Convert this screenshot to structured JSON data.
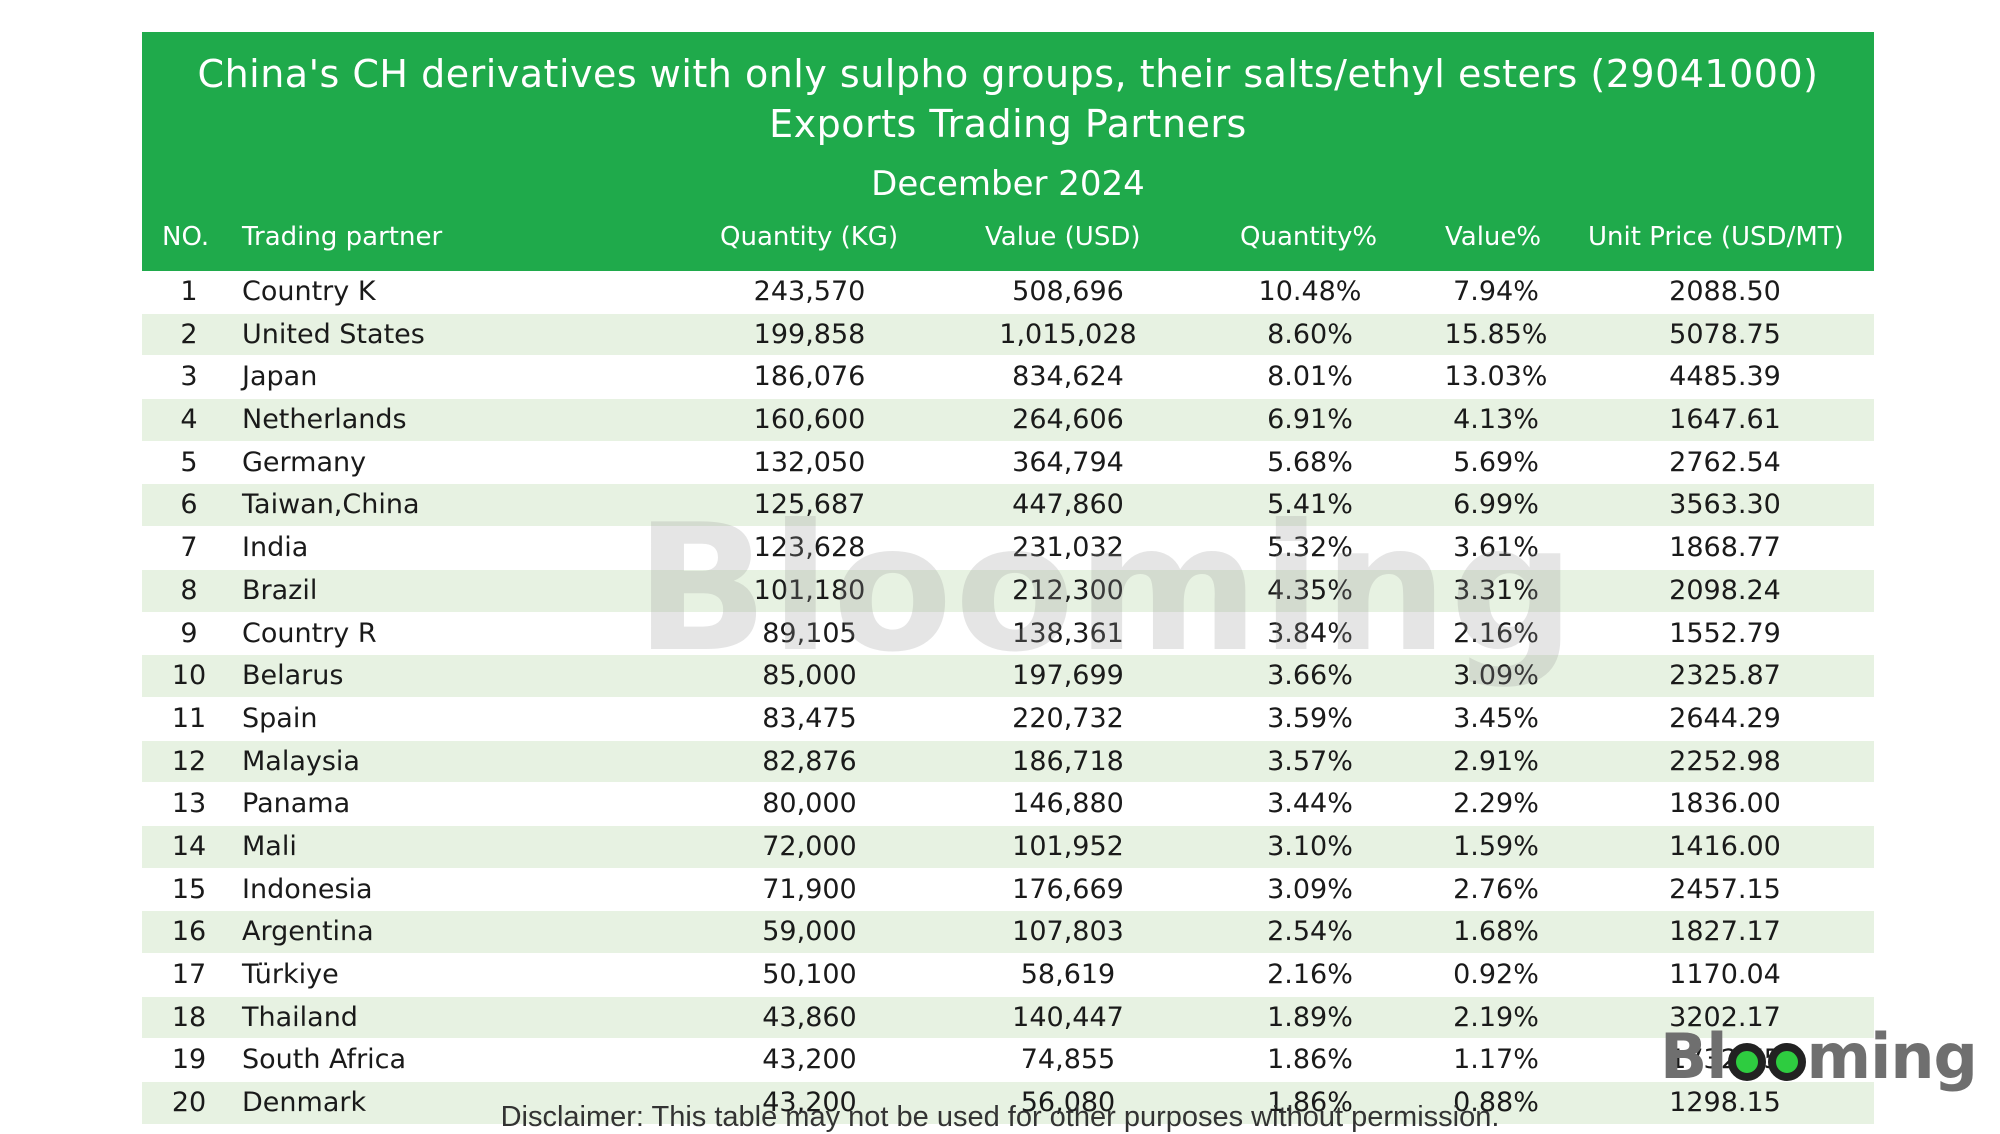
{
  "title_line1": "China's CH derivatives with only sulpho groups, their salts/ethyl esters (29041000)",
  "title_line2": "Exports Trading Partners",
  "subtitle": "December 2024",
  "columns": {
    "no": "NO.",
    "partner": "Trading partner",
    "quantity": "Quantity (KG)",
    "value": "Value (USD)",
    "quantity_pct": "Quantity%",
    "value_pct": "Value%",
    "unit_price": "Unit Price (USD/MT)"
  },
  "watermark": "Blooming",
  "logo": "Blooming",
  "disclaimer": "Disclaimer: This table may not be used for other purposes without permission.",
  "colors": {
    "header_green": "#1faa4b",
    "row_stripe": "#e7f2e2"
  },
  "chart_data": {
    "type": "table",
    "title": "China's CH derivatives with only sulpho groups, their salts/ethyl esters (29041000) Exports Trading Partners",
    "subtitle": "December 2024",
    "headers": [
      "NO.",
      "Trading partner",
      "Quantity (KG)",
      "Value (USD)",
      "Quantity%",
      "Value%",
      "Unit Price (USD/MT)"
    ],
    "rows": [
      [
        "1",
        "Country K",
        "243,570",
        "508,696",
        "10.48%",
        "7.94%",
        "2088.50"
      ],
      [
        "2",
        "United States",
        "199,858",
        "1,015,028",
        "8.60%",
        "15.85%",
        "5078.75"
      ],
      [
        "3",
        "Japan",
        "186,076",
        "834,624",
        "8.01%",
        "13.03%",
        "4485.39"
      ],
      [
        "4",
        "Netherlands",
        "160,600",
        "264,606",
        "6.91%",
        "4.13%",
        "1647.61"
      ],
      [
        "5",
        "Germany",
        "132,050",
        "364,794",
        "5.68%",
        "5.69%",
        "2762.54"
      ],
      [
        "6",
        "Taiwan,China",
        "125,687",
        "447,860",
        "5.41%",
        "6.99%",
        "3563.30"
      ],
      [
        "7",
        "India",
        "123,628",
        "231,032",
        "5.32%",
        "3.61%",
        "1868.77"
      ],
      [
        "8",
        "Brazil",
        "101,180",
        "212,300",
        "4.35%",
        "3.31%",
        "2098.24"
      ],
      [
        "9",
        "Country R",
        "89,105",
        "138,361",
        "3.84%",
        "2.16%",
        "1552.79"
      ],
      [
        "10",
        "Belarus",
        "85,000",
        "197,699",
        "3.66%",
        "3.09%",
        "2325.87"
      ],
      [
        "11",
        "Spain",
        "83,475",
        "220,732",
        "3.59%",
        "3.45%",
        "2644.29"
      ],
      [
        "12",
        "Malaysia",
        "82,876",
        "186,718",
        "3.57%",
        "2.91%",
        "2252.98"
      ],
      [
        "13",
        "Panama",
        "80,000",
        "146,880",
        "3.44%",
        "2.29%",
        "1836.00"
      ],
      [
        "14",
        "Mali",
        "72,000",
        "101,952",
        "3.10%",
        "1.59%",
        "1416.00"
      ],
      [
        "15",
        "Indonesia",
        "71,900",
        "176,669",
        "3.09%",
        "2.76%",
        "2457.15"
      ],
      [
        "16",
        "Argentina",
        "59,000",
        "107,803",
        "2.54%",
        "1.68%",
        "1827.17"
      ],
      [
        "17",
        "Türkiye",
        "50,100",
        "58,619",
        "2.16%",
        "0.92%",
        "1170.04"
      ],
      [
        "18",
        "Thailand",
        "43,860",
        "140,447",
        "1.89%",
        "2.19%",
        "3202.17"
      ],
      [
        "19",
        "South Africa",
        "43,200",
        "74,855",
        "1.86%",
        "1.17%",
        "1732.75"
      ],
      [
        "20",
        "Denmark",
        "43,200",
        "56,080",
        "1.86%",
        "0.88%",
        "1298.15"
      ]
    ]
  }
}
